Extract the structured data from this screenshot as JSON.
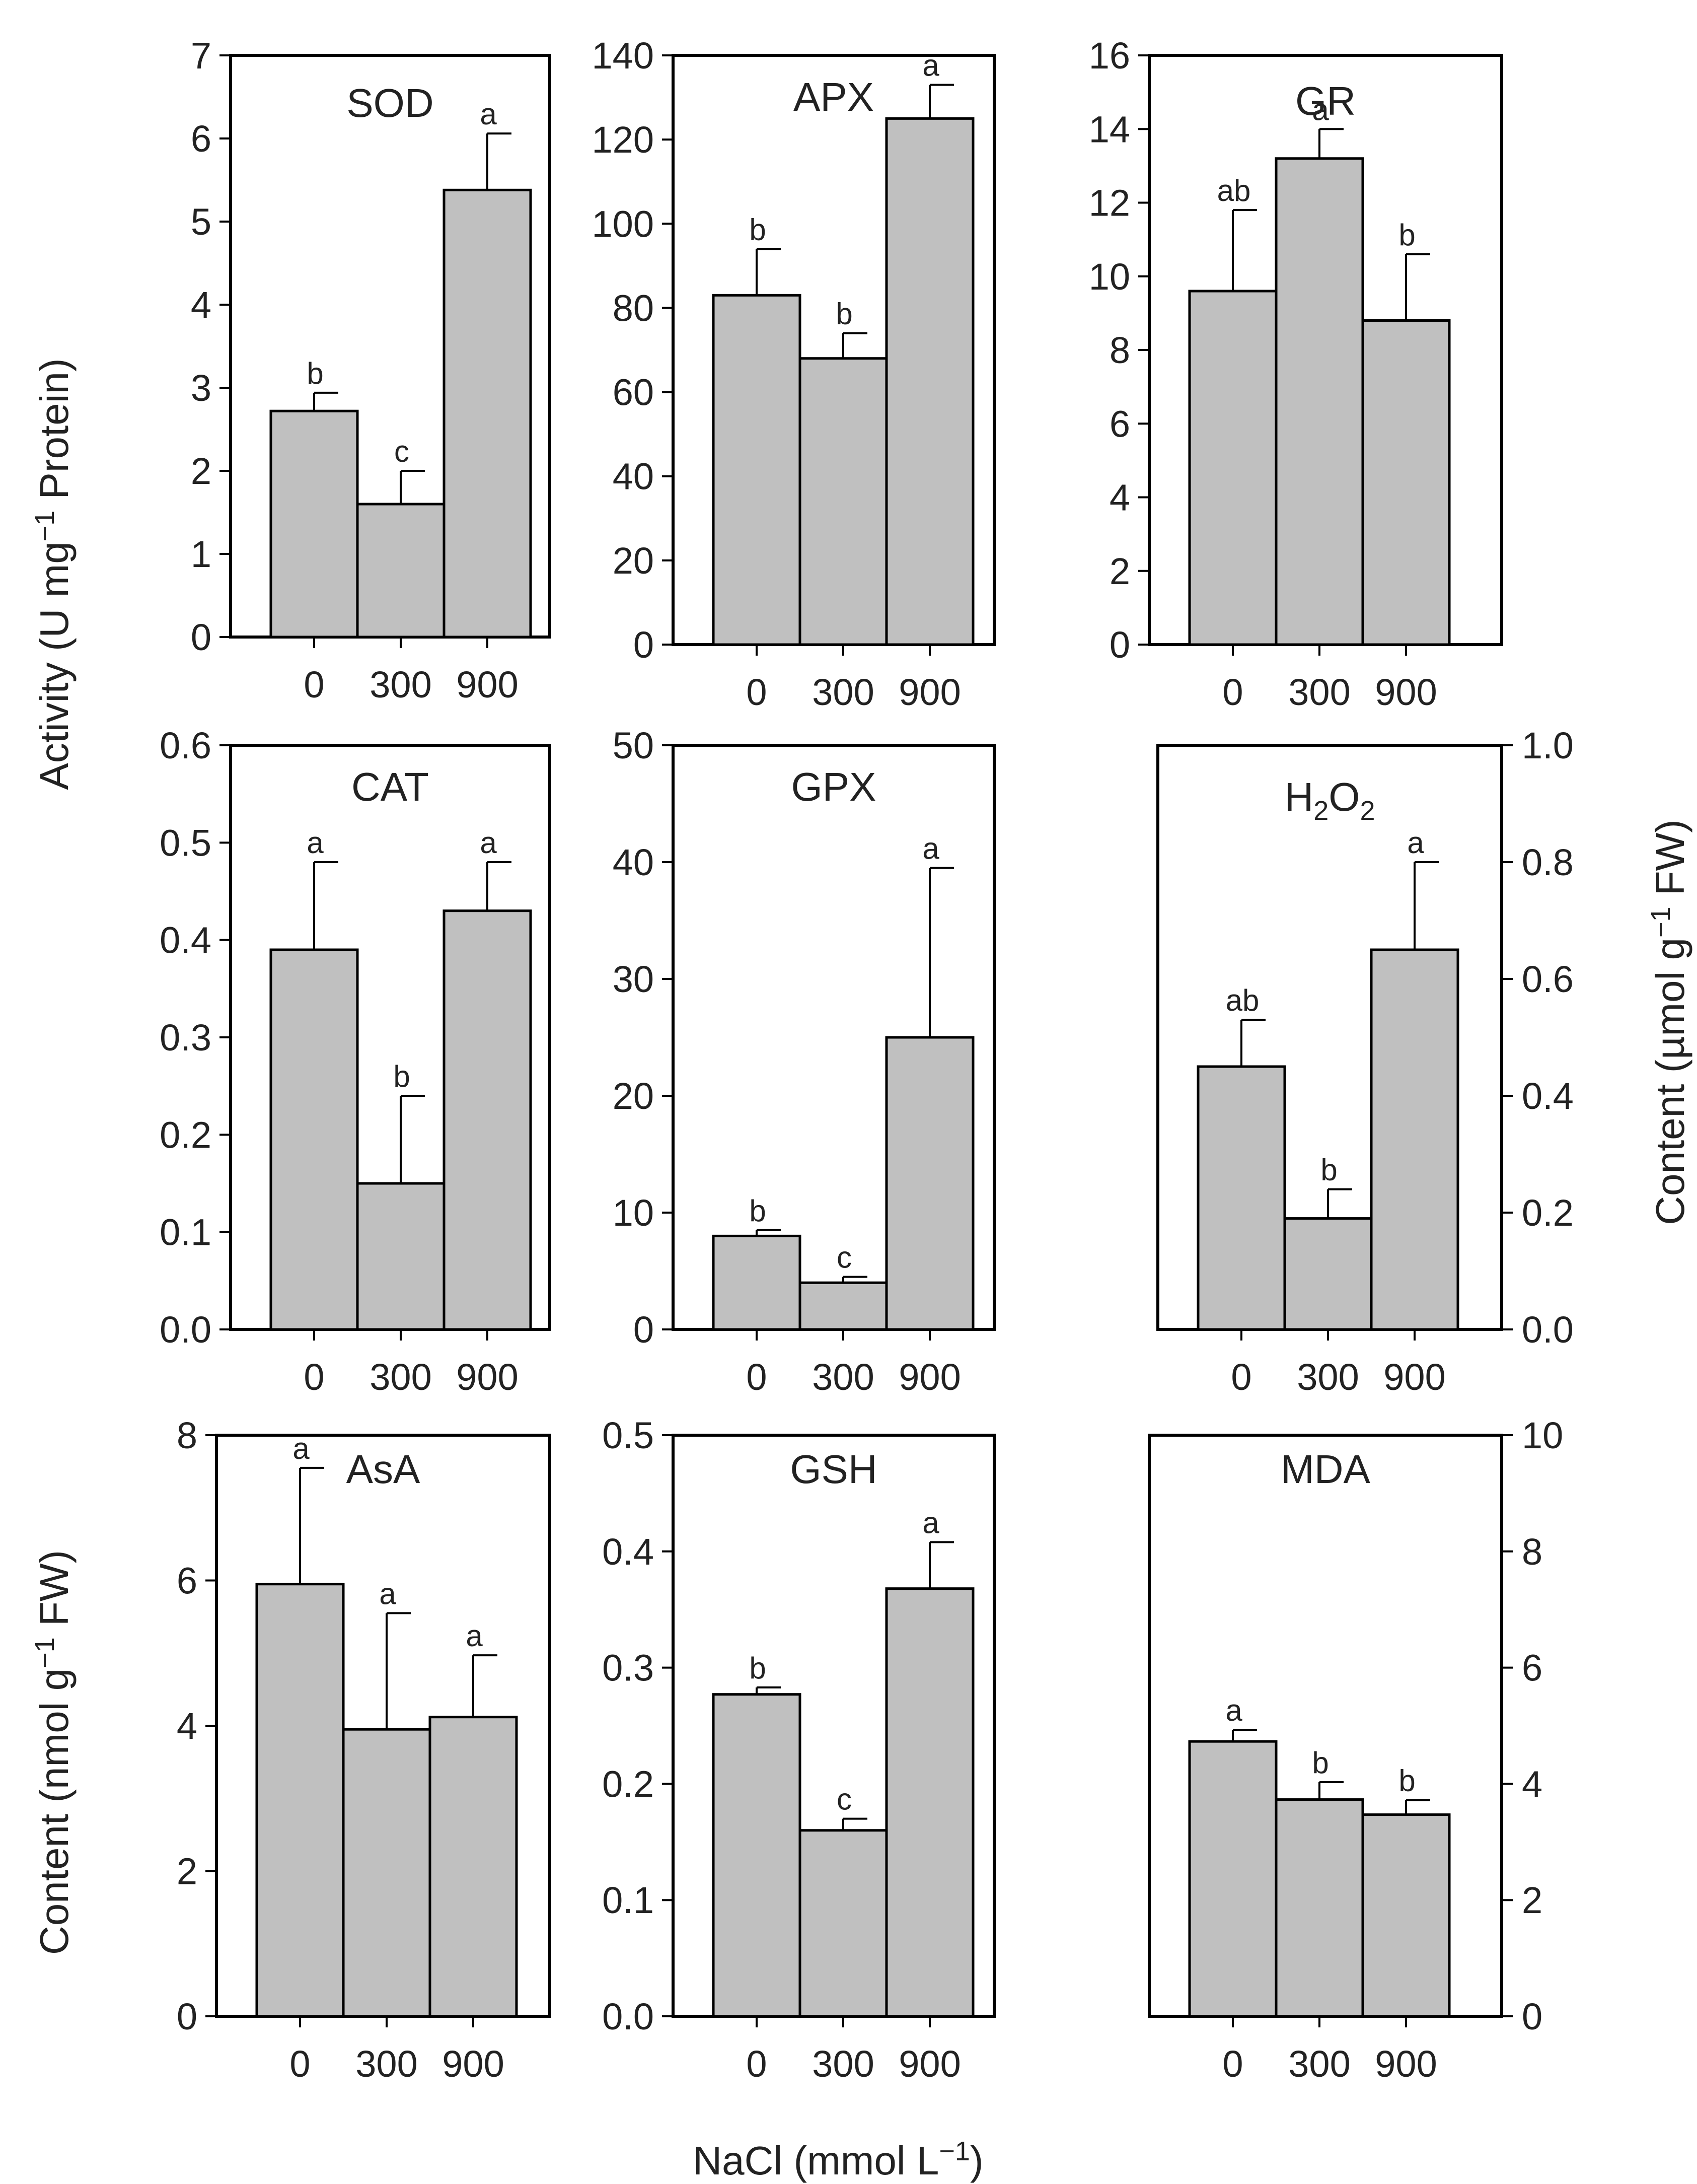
{
  "figure": {
    "x_axis_title": "NaCl (mmol L",
    "x_axis_title_sup": "−1",
    "x_axis_title_end": ")",
    "left_ylabel_top": "Activity (U mg",
    "left_ylabel_top_sup": "−1",
    "left_ylabel_top_end": " Protein)",
    "left_ylabel_bottom": "Content (nmol g",
    "left_ylabel_bottom_sup": "−1",
    "left_ylabel_bottom_end": " FW)",
    "right_ylabel_mid": "Content (µmol g",
    "right_ylabel_mid_sup": "−1",
    "right_ylabel_mid_end": " FW)",
    "bar_color": "#c0c0c0"
  },
  "chart_data": [
    {
      "type": "bar",
      "title": "SOD",
      "categories": [
        "0",
        "300",
        "900"
      ],
      "values": [
        2.72,
        1.6,
        5.38
      ],
      "errors": [
        0.22,
        0.4,
        0.68
      ],
      "letters": [
        "b",
        "c",
        "a"
      ],
      "ylim": [
        0,
        7
      ],
      "yticks": [
        "0",
        "1",
        "2",
        "3",
        "4",
        "5",
        "6",
        "7"
      ],
      "yaxis_side": "left",
      "ylabel": "Activity (U mg−1 Protein)"
    },
    {
      "type": "bar",
      "title": "APX",
      "categories": [
        "0",
        "300",
        "900"
      ],
      "values": [
        83,
        68,
        125
      ],
      "errors": [
        11,
        6,
        8
      ],
      "letters": [
        "b",
        "b",
        "a"
      ],
      "ylim": [
        0,
        140
      ],
      "yticks": [
        "0",
        "20",
        "40",
        "60",
        "80",
        "100",
        "120",
        "140"
      ],
      "yaxis_side": "left",
      "ylabel": "Activity (U mg−1 Protein)"
    },
    {
      "type": "bar",
      "title": "GR",
      "categories": [
        "0",
        "300",
        "900"
      ],
      "values": [
        9.6,
        13.2,
        8.8
      ],
      "errors": [
        2.2,
        0.8,
        1.8
      ],
      "letters": [
        "ab",
        "a",
        "b"
      ],
      "ylim": [
        0,
        16
      ],
      "yticks": [
        "0",
        "2",
        "4",
        "6",
        "8",
        "10",
        "12",
        "14",
        "16"
      ],
      "yaxis_side": "left",
      "ylabel": "Activity (U mg−1 Protein)"
    },
    {
      "type": "bar",
      "title": "CAT",
      "categories": [
        "0",
        "300",
        "900"
      ],
      "values": [
        0.39,
        0.15,
        0.43
      ],
      "errors": [
        0.09,
        0.09,
        0.05
      ],
      "letters": [
        "a",
        "b",
        "a"
      ],
      "ylim": [
        0,
        0.6
      ],
      "yticks": [
        "0.0",
        "0.1",
        "0.2",
        "0.3",
        "0.4",
        "0.5",
        "0.6"
      ],
      "yaxis_side": "left",
      "ylabel": "Activity (U mg−1 Protein)"
    },
    {
      "type": "bar",
      "title": "GPX",
      "categories": [
        "0",
        "300",
        "900"
      ],
      "values": [
        8,
        4,
        25
      ],
      "errors": [
        0.5,
        0.5,
        14.5
      ],
      "letters": [
        "b",
        "c",
        "a"
      ],
      "ylim": [
        0,
        50
      ],
      "yticks": [
        "0",
        "10",
        "20",
        "30",
        "40",
        "50"
      ],
      "yaxis_side": "left",
      "ylabel": "Activity (U mg−1 Protein)"
    },
    {
      "type": "bar",
      "title": "H",
      "title_sub1": "2",
      "title_mid": "O",
      "title_sub2": "2",
      "categories": [
        "0",
        "300",
        "900"
      ],
      "values": [
        0.45,
        0.19,
        0.65
      ],
      "errors": [
        0.08,
        0.05,
        0.15
      ],
      "letters": [
        "ab",
        "b",
        "a"
      ],
      "ylim": [
        0,
        1.0
      ],
      "yticks": [
        "0.0",
        "0.2",
        "0.4",
        "0.6",
        "0.8",
        "1.0"
      ],
      "yaxis_side": "right",
      "ylabel": "Content (µmol g−1 FW)"
    },
    {
      "type": "bar",
      "title": "AsA",
      "categories": [
        "0",
        "300",
        "900"
      ],
      "values": [
        5.95,
        3.95,
        4.12
      ],
      "errors": [
        1.6,
        1.6,
        0.85
      ],
      "letters": [
        "a",
        "a",
        "a"
      ],
      "ylim": [
        0,
        8
      ],
      "yticks": [
        "0",
        "2",
        "4",
        "6",
        "8"
      ],
      "yaxis_side": "left",
      "ylabel": "Content (nmol g−1 FW)"
    },
    {
      "type": "bar",
      "title": "GSH",
      "categories": [
        "0",
        "300",
        "900"
      ],
      "values": [
        0.277,
        0.16,
        0.368
      ],
      "errors": [
        0.006,
        0.01,
        0.04
      ],
      "letters": [
        "b",
        "c",
        "a"
      ],
      "ylim": [
        0,
        0.5
      ],
      "yticks": [
        "0.0",
        "0.1",
        "0.2",
        "0.3",
        "0.4",
        "0.5"
      ],
      "yaxis_side": "left",
      "ylabel": "Content (nmol g−1 FW)"
    },
    {
      "type": "bar",
      "title": "MDA",
      "categories": [
        "0",
        "300",
        "900"
      ],
      "values": [
        4.73,
        3.73,
        3.47
      ],
      "errors": [
        0.2,
        0.3,
        0.25
      ],
      "letters": [
        "a",
        "b",
        "b"
      ],
      "ylim": [
        0,
        10
      ],
      "yticks": [
        "0",
        "2",
        "4",
        "6",
        "8",
        "10"
      ],
      "yaxis_side": "right",
      "ylabel": "Content (µmol g−1 FW)"
    }
  ]
}
